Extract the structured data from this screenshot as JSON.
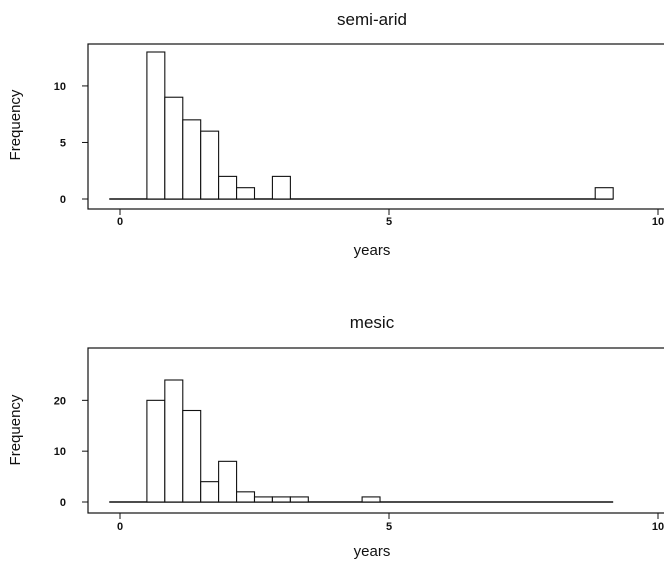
{
  "chart_data": [
    {
      "type": "bar",
      "title": "semi-arid",
      "xlabel": "years",
      "ylabel": "Frequency",
      "xlim": [
        -0.2,
        10
      ],
      "ylim": [
        0,
        13
      ],
      "x_ticks": [
        "0",
        "5",
        "10"
      ],
      "y_ticks": [
        "0",
        "5",
        "10"
      ],
      "bin_width": 0.333,
      "bins": [
        {
          "x0": 0.5,
          "x1": 0.833,
          "count": 13
        },
        {
          "x0": 0.833,
          "x1": 1.167,
          "count": 9
        },
        {
          "x0": 1.167,
          "x1": 1.5,
          "count": 7
        },
        {
          "x0": 1.5,
          "x1": 1.833,
          "count": 6
        },
        {
          "x0": 1.833,
          "x1": 2.167,
          "count": 2
        },
        {
          "x0": 2.167,
          "x1": 2.5,
          "count": 1
        },
        {
          "x0": 2.833,
          "x1": 3.167,
          "count": 2
        },
        {
          "x0": 8.833,
          "x1": 9.167,
          "count": 1
        }
      ],
      "baseline_range": [
        -0.2,
        9.167
      ]
    },
    {
      "type": "bar",
      "title": "mesic",
      "xlabel": "years",
      "ylabel": "Frequency",
      "xlim": [
        -0.2,
        10
      ],
      "ylim": [
        0,
        24
      ],
      "x_ticks": [
        "0",
        "5",
        "10"
      ],
      "y_ticks": [
        "0",
        "10",
        "20"
      ],
      "bin_width": 0.333,
      "bins": [
        {
          "x0": 0.5,
          "x1": 0.833,
          "count": 20
        },
        {
          "x0": 0.833,
          "x1": 1.167,
          "count": 24
        },
        {
          "x0": 1.167,
          "x1": 1.5,
          "count": 18
        },
        {
          "x0": 1.5,
          "x1": 1.833,
          "count": 4
        },
        {
          "x0": 1.833,
          "x1": 2.167,
          "count": 8
        },
        {
          "x0": 2.167,
          "x1": 2.5,
          "count": 2
        },
        {
          "x0": 2.5,
          "x1": 2.833,
          "count": 1
        },
        {
          "x0": 2.833,
          "x1": 3.167,
          "count": 1
        },
        {
          "x0": 3.167,
          "x1": 3.5,
          "count": 1
        },
        {
          "x0": 4.5,
          "x1": 4.833,
          "count": 1
        }
      ],
      "baseline_range": [
        -0.2,
        9.167
      ]
    }
  ]
}
